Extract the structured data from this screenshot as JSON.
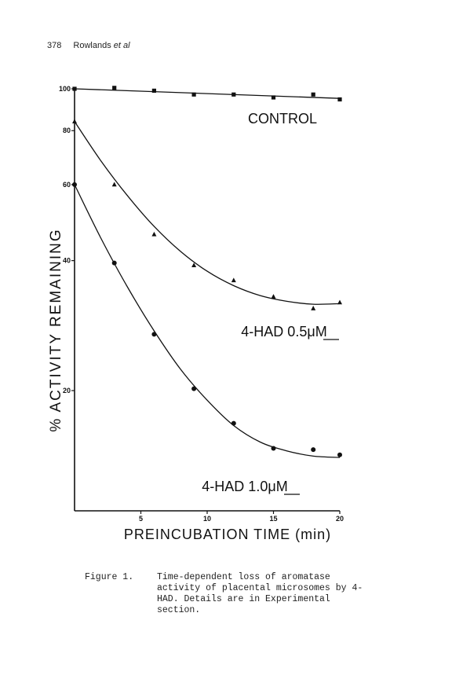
{
  "header": {
    "page_number": "378",
    "authors": "Rowlands",
    "etal": "et al"
  },
  "caption": {
    "label": "Figure 1.",
    "text": "Time-dependent loss of aromatase activity of placental microsomes by 4-HAD. Details are in Experimental section."
  },
  "chart_data": {
    "type": "scatter",
    "title": "",
    "xlabel": "PREINCUBATION TIME (min)",
    "ylabel": "% ACTIVITY REMAINING",
    "xlim": [
      0,
      20
    ],
    "ylim": [
      13,
      100
    ],
    "yscale": "log",
    "xticks": [
      5,
      10,
      15,
      20
    ],
    "yticks": [
      20,
      40,
      60,
      80,
      100
    ],
    "grid": false,
    "series": [
      {
        "name": "CONTROL",
        "marker": "square",
        "x": [
          0,
          3,
          6,
          9,
          12,
          15,
          18,
          20
        ],
        "y": [
          100,
          100.5,
          99,
          97,
          97,
          95.5,
          97,
          94.5
        ],
        "fit_x": [
          0,
          20
        ],
        "fit_y": [
          100,
          95
        ]
      },
      {
        "name": "4-HAD 0.5μM",
        "marker": "triangle",
        "x": [
          0,
          3,
          6,
          9,
          12,
          15,
          18,
          20
        ],
        "y": [
          84,
          60,
          46,
          39,
          36,
          33,
          31,
          32
        ],
        "fit_x": [
          0,
          2,
          4,
          6,
          8,
          10,
          12,
          14,
          16,
          18,
          20
        ],
        "fit_y": [
          84,
          68,
          56.5,
          48,
          42,
          37.8,
          35,
          33.2,
          32.2,
          31.7,
          31.8
        ]
      },
      {
        "name": "4-HAD 1.0μM",
        "marker": "circle",
        "x": [
          0,
          3,
          6,
          9,
          12,
          15,
          18,
          20
        ],
        "y": [
          60,
          39.5,
          27,
          20.2,
          16.8,
          14.7,
          14.6,
          14.2
        ],
        "fit_x": [
          0,
          2,
          4,
          6,
          8,
          10,
          12,
          14,
          16,
          18,
          20
        ],
        "fit_y": [
          60,
          45,
          34.7,
          27.5,
          22.4,
          19,
          16.6,
          15.2,
          14.5,
          14.1,
          14
        ]
      }
    ]
  }
}
